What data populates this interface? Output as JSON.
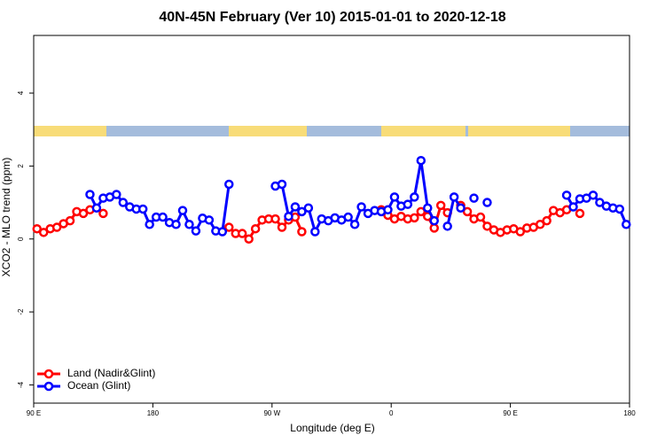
{
  "chart_data": {
    "type": "line",
    "title": "40N-45N February (Ver 10)   2015-01-01 to 2020-12-18",
    "x_label": "Longitude (deg E)",
    "y_label": "XCO2 - MLO trend (ppm)",
    "x": [
      92.5,
      97.5,
      102.5,
      107.5,
      112.5,
      117.5,
      122.5,
      127.5,
      132.5,
      137.5,
      142.5,
      147.5,
      152.5,
      157.5,
      162.5,
      167.5,
      172.5,
      177.5,
      182.5,
      187.5,
      192.5,
      197.5,
      202.5,
      207.5,
      212.5,
      217.5,
      222.5,
      227.5,
      232.5,
      237.5,
      242.5,
      247.5,
      252.5,
      257.5,
      262.5,
      267.5,
      272.5,
      277.5,
      282.5,
      287.5,
      292.5,
      297.5,
      302.5,
      307.5,
      312.5,
      317.5,
      322.5,
      327.5,
      332.5,
      337.5,
      342.5,
      347.5,
      352.5,
      357.5,
      362.5,
      367.5,
      372.5,
      377.5,
      382.5,
      387.5,
      392.5,
      397.5,
      402.5,
      407.5,
      412.5,
      417.5,
      422.5,
      427.5,
      432.5,
      437.5,
      442.5,
      447.5,
      452.5,
      457.5,
      462.5,
      467.5,
      472.5,
      477.5,
      482.5,
      487.5,
      492.5,
      497.5,
      502.5,
      507.5,
      512.5,
      517.5,
      522.5,
      527.5,
      532.5,
      537.5
    ],
    "series": [
      {
        "name": "Land (Nadir&Glint)",
        "color": "#ff0000",
        "values": [
          0.28,
          0.18,
          0.28,
          0.32,
          0.42,
          0.5,
          0.75,
          0.7,
          0.8,
          null,
          0.7,
          null,
          null,
          null,
          null,
          null,
          null,
          null,
          null,
          null,
          null,
          null,
          null,
          null,
          null,
          null,
          null,
          null,
          null,
          0.32,
          0.15,
          0.15,
          0,
          0.28,
          0.52,
          0.55,
          0.55,
          0.32,
          0.52,
          0.6,
          0.2,
          null,
          null,
          null,
          null,
          null,
          null,
          null,
          null,
          null,
          null,
          null,
          0.8,
          0.65,
          0.55,
          0.62,
          0.55,
          0.58,
          0.75,
          0.62,
          0.3,
          0.92,
          0.72,
          null,
          0.92,
          0.75,
          0.55,
          0.6,
          0.35,
          0.25,
          0.18,
          0.25,
          0.28,
          0.2,
          0.3,
          0.32,
          0.4,
          0.5,
          0.78,
          0.72,
          0.8,
          null,
          0.7,
          null,
          null,
          null,
          null,
          null,
          null,
          null
        ]
      },
      {
        "name": "Ocean (Glint)",
        "color": "#0000ff",
        "values": [
          null,
          null,
          null,
          null,
          null,
          null,
          null,
          null,
          1.22,
          0.85,
          1.12,
          1.15,
          1.22,
          1.0,
          0.88,
          0.82,
          0.82,
          0.4,
          0.6,
          0.6,
          0.45,
          0.4,
          0.78,
          0.4,
          0.22,
          0.57,
          0.52,
          0.22,
          0.2,
          1.5,
          null,
          null,
          null,
          null,
          null,
          null,
          1.45,
          1.5,
          0.62,
          0.88,
          0.75,
          0.85,
          0.2,
          0.55,
          0.5,
          0.58,
          0.52,
          0.6,
          0.4,
          0.88,
          0.7,
          0.78,
          0.75,
          0.8,
          1.15,
          0.9,
          0.95,
          1.15,
          2.15,
          0.85,
          0.5,
          null,
          0.35,
          1.15,
          0.85,
          null,
          1.12,
          null,
          1.0,
          null,
          null,
          null,
          null,
          null,
          null,
          null,
          null,
          null,
          null,
          null,
          1.2,
          0.88,
          1.1,
          1.12,
          1.2,
          1.0,
          0.9,
          0.85,
          0.82,
          0.4
        ]
      }
    ],
    "xlim": [
      90,
      540
    ],
    "xticks": [
      {
        "value": 90,
        "label": "90 E"
      },
      180,
      {
        "value": 270,
        "label": "90 W"
      },
      {
        "value": 360,
        "label": "0"
      },
      {
        "value": 450,
        "label": "90 E"
      },
      {
        "value": 540,
        "label": "180"
      }
    ],
    "ylim": [
      -4.5,
      5.58
    ],
    "yticks": [
      -4,
      -2,
      0,
      2,
      4
    ],
    "legend": "bottom-left"
  }
}
